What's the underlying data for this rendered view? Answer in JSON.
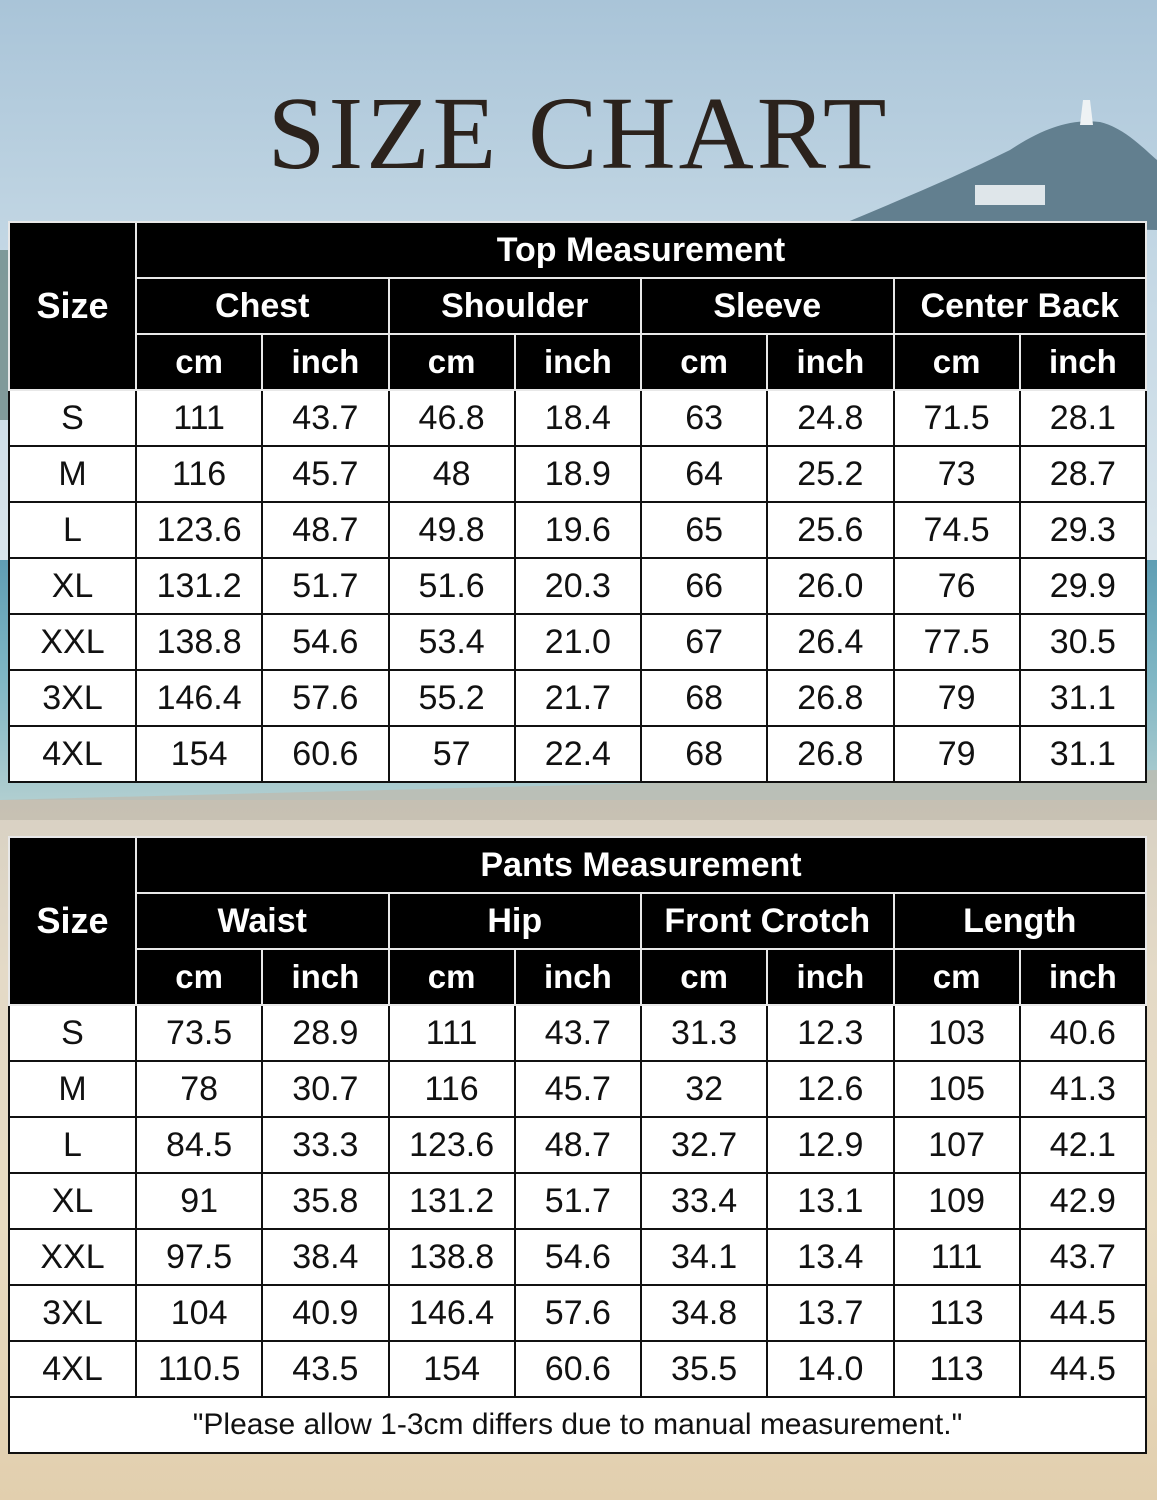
{
  "title": "SIZE CHART",
  "top": {
    "caption": "Top Measurement",
    "size_label": "Size",
    "groups": [
      "Chest",
      "Shoulder",
      "Sleeve",
      "Center Back"
    ],
    "units": [
      "cm",
      "inch",
      "cm",
      "inch",
      "cm",
      "inch",
      "cm",
      "inch"
    ],
    "rows": [
      [
        "S",
        "111",
        "43.7",
        "46.8",
        "18.4",
        "63",
        "24.8",
        "71.5",
        "28.1"
      ],
      [
        "M",
        "116",
        "45.7",
        "48",
        "18.9",
        "64",
        "25.2",
        "73",
        "28.7"
      ],
      [
        "L",
        "123.6",
        "48.7",
        "49.8",
        "19.6",
        "65",
        "25.6",
        "74.5",
        "29.3"
      ],
      [
        "XL",
        "131.2",
        "51.7",
        "51.6",
        "20.3",
        "66",
        "26.0",
        "76",
        "29.9"
      ],
      [
        "XXL",
        "138.8",
        "54.6",
        "53.4",
        "21.0",
        "67",
        "26.4",
        "77.5",
        "30.5"
      ],
      [
        "3XL",
        "146.4",
        "57.6",
        "55.2",
        "21.7",
        "68",
        "26.8",
        "79",
        "31.1"
      ],
      [
        "4XL",
        "154",
        "60.6",
        "57",
        "22.4",
        "68",
        "26.8",
        "79",
        "31.1"
      ]
    ]
  },
  "pants": {
    "caption": "Pants  Measurement",
    "size_label": "Size",
    "groups": [
      "Waist",
      "Hip",
      "Front Crotch",
      "Length"
    ],
    "units": [
      "cm",
      "inch",
      "cm",
      "inch",
      "cm",
      "inch",
      "cm",
      "inch"
    ],
    "rows": [
      [
        "S",
        "73.5",
        "28.9",
        "111",
        "43.7",
        "31.3",
        "12.3",
        "103",
        "40.6"
      ],
      [
        "M",
        "78",
        "30.7",
        "116",
        "45.7",
        "32",
        "12.6",
        "105",
        "41.3"
      ],
      [
        "L",
        "84.5",
        "33.3",
        "123.6",
        "48.7",
        "32.7",
        "12.9",
        "107",
        "42.1"
      ],
      [
        "XL",
        "91",
        "35.8",
        "131.2",
        "51.7",
        "33.4",
        "13.1",
        "109",
        "42.9"
      ],
      [
        "XXL",
        "97.5",
        "38.4",
        "138.8",
        "54.6",
        "34.1",
        "13.4",
        "111",
        "43.7"
      ],
      [
        "3XL",
        "104",
        "40.9",
        "146.4",
        "57.6",
        "34.8",
        "13.7",
        "113",
        "44.5"
      ],
      [
        "4XL",
        "110.5",
        "43.5",
        "154",
        "60.6",
        "35.5",
        "14.0",
        "113",
        "44.5"
      ]
    ],
    "note": "\"Please allow 1-3cm differs due to manual measurement.\""
  }
}
